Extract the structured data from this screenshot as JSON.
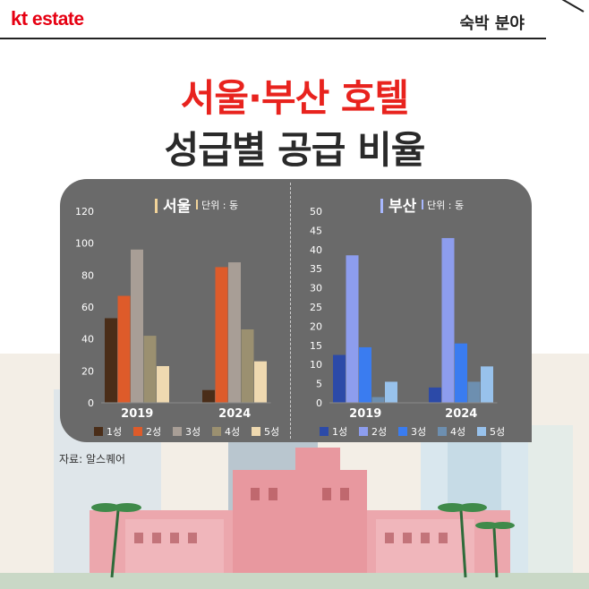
{
  "header": {
    "logo_kt": "kt",
    "logo_estate": "estate",
    "section": "숙박 분야"
  },
  "title": {
    "line1": "서울·부산 호텔",
    "line2": "성급별 공급 비율"
  },
  "source": "자료: 알스퀘어",
  "colors": {
    "seoul": [
      "#4a2d18",
      "#de5b2a",
      "#a89e96",
      "#9b9070",
      "#efd9b0"
    ],
    "busan": [
      "#2c4aa8",
      "#8d9dee",
      "#3a7cf0",
      "#6d8fb0",
      "#98c2ec"
    ],
    "panel_bg": "#6a6a6a",
    "title_red": "#e8231e"
  },
  "chart_data": [
    {
      "type": "bar",
      "title": "서울",
      "unit": "단위 : 동",
      "categories": [
        "2019",
        "2024"
      ],
      "ylim": [
        0,
        120
      ],
      "yticks": [
        "0",
        "20",
        "40",
        "60",
        "80",
        "100",
        "120"
      ],
      "legend": [
        "1성",
        "2성",
        "3성",
        "4성",
        "5성"
      ],
      "series": [
        {
          "name": "1성",
          "values": [
            53,
            8
          ]
        },
        {
          "name": "2성",
          "values": [
            67,
            85
          ]
        },
        {
          "name": "3성",
          "values": [
            96,
            88
          ]
        },
        {
          "name": "4성",
          "values": [
            42,
            46
          ]
        },
        {
          "name": "5성",
          "values": [
            23,
            26
          ]
        }
      ]
    },
    {
      "type": "bar",
      "title": "부산",
      "unit": "단위 : 동",
      "categories": [
        "2019",
        "2024"
      ],
      "ylim": [
        0,
        50
      ],
      "yticks": [
        "0",
        "5",
        "10",
        "15",
        "20",
        "25",
        "30",
        "35",
        "40",
        "45",
        "50"
      ],
      "legend": [
        "1성",
        "2성",
        "3성",
        "4성",
        "5성"
      ],
      "series": [
        {
          "name": "1성",
          "values": [
            12.5,
            4
          ]
        },
        {
          "name": "2성",
          "values": [
            38.5,
            43
          ]
        },
        {
          "name": "3성",
          "values": [
            14.5,
            15.5
          ]
        },
        {
          "name": "4성",
          "values": [
            1.5,
            5.5
          ]
        },
        {
          "name": "5성",
          "values": [
            5.5,
            9.5
          ]
        }
      ]
    }
  ]
}
